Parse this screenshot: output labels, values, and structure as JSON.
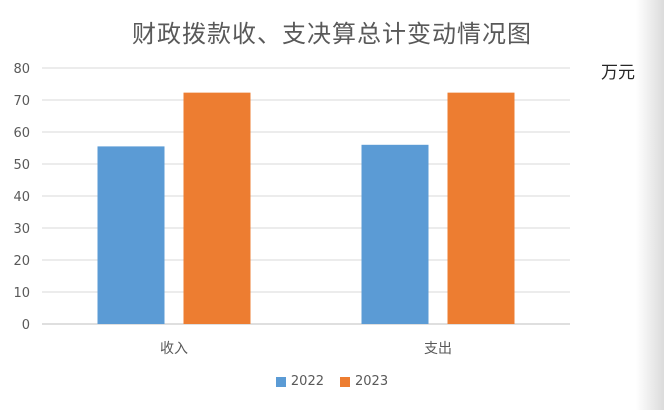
{
  "chart_data": {
    "type": "bar",
    "title": "财政拨款收、支决算总计变动情况图",
    "unit": "万元",
    "categories": [
      "收入",
      "支出"
    ],
    "series": [
      {
        "name": "2022",
        "values": [
          55.5,
          56.0
        ],
        "color": "#5B9BD5"
      },
      {
        "name": "2023",
        "values": [
          72.3,
          72.3
        ],
        "color": "#ED7D31"
      }
    ],
    "ylim": [
      0,
      80
    ],
    "yticks": [
      0,
      10,
      20,
      30,
      40,
      50,
      60,
      70,
      80
    ],
    "grid": true,
    "legend_position": "bottom"
  }
}
